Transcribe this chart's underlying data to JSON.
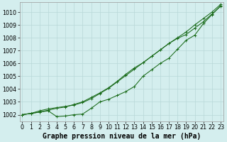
{
  "title": "Graphe pression niveau de la mer (hPa)",
  "xlabel_hours": [
    0,
    1,
    2,
    3,
    4,
    5,
    6,
    7,
    8,
    9,
    10,
    11,
    12,
    13,
    14,
    15,
    16,
    17,
    18,
    19,
    20,
    21,
    22,
    23
  ],
  "line1": [
    1002.0,
    1002.1,
    1002.2,
    1002.3,
    1001.85,
    1001.9,
    1002.0,
    1002.05,
    1002.5,
    1003.0,
    1003.2,
    1003.5,
    1003.8,
    1004.2,
    1005.0,
    1005.5,
    1006.0,
    1006.4,
    1007.1,
    1007.8,
    1008.2,
    1009.1,
    1009.8,
    1010.5
  ],
  "line2": [
    1002.0,
    1002.1,
    1002.2,
    1002.35,
    1002.5,
    1002.6,
    1002.8,
    1003.0,
    1003.35,
    1003.7,
    1004.1,
    1004.6,
    1005.15,
    1005.65,
    1006.05,
    1006.55,
    1007.05,
    1007.55,
    1008.0,
    1008.45,
    1009.0,
    1009.5,
    1010.0,
    1010.6
  ],
  "line3": [
    1002.0,
    1002.1,
    1002.3,
    1002.45,
    1002.55,
    1002.65,
    1002.75,
    1002.95,
    1003.25,
    1003.65,
    1004.05,
    1004.55,
    1005.05,
    1005.55,
    1006.05,
    1006.55,
    1007.05,
    1007.55,
    1007.95,
    1008.25,
    1008.75,
    1009.25,
    1009.85,
    1010.45
  ],
  "line_color": "#1a6b1a",
  "bg_color": "#d4eeee",
  "grid_color": "#b8d8d8",
  "ylim": [
    1001.5,
    1010.75
  ],
  "yticks": [
    1002,
    1003,
    1004,
    1005,
    1006,
    1007,
    1008,
    1009,
    1010
  ],
  "title_fontsize": 7.0,
  "tick_fontsize": 5.8
}
